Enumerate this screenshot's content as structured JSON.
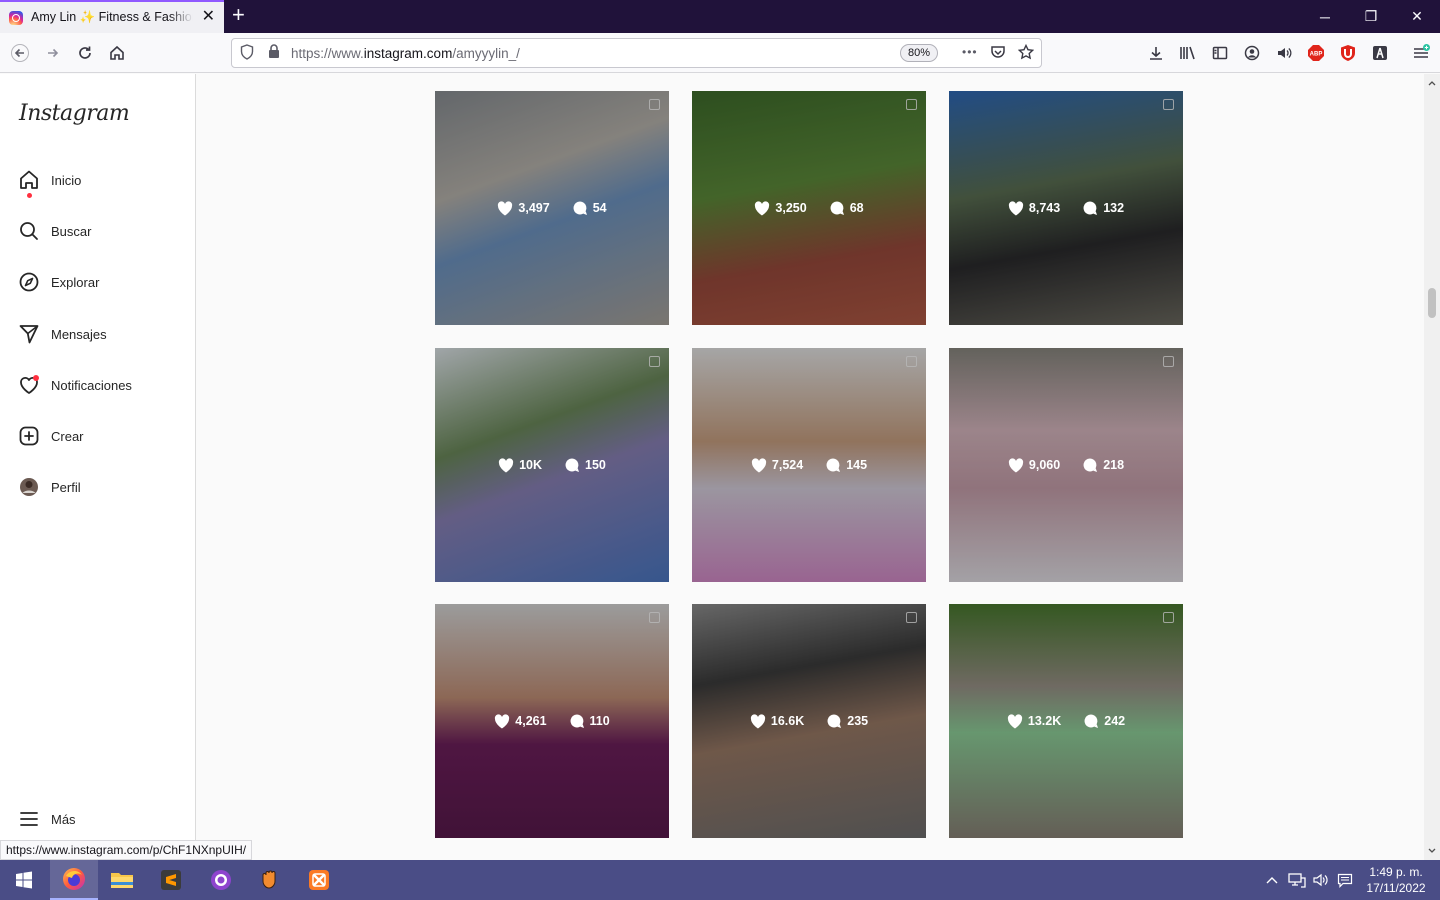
{
  "browser": {
    "tab_title": "Amy Lin ✨ Fitness & Fashion (@",
    "url_prefix": "https://www.",
    "url_domain": "instagram.com",
    "url_path": "/amyyylin_/",
    "zoom": "80%",
    "status_url": "https://www.instagram.com/p/ChF1NXnpUIH/",
    "more_glyph": "•••"
  },
  "sidebar": {
    "logo": "Instagram",
    "items": [
      {
        "label": "Inicio",
        "icon": "home-icon"
      },
      {
        "label": "Buscar",
        "icon": "search-icon"
      },
      {
        "label": "Explorar",
        "icon": "explore-icon"
      },
      {
        "label": "Mensajes",
        "icon": "messages-icon"
      },
      {
        "label": "Notificaciones",
        "icon": "heart-icon"
      },
      {
        "label": "Crear",
        "icon": "create-icon"
      },
      {
        "label": "Perfil",
        "icon": "avatar"
      }
    ],
    "more_label": "Más"
  },
  "posts": [
    {
      "likes": "3,497",
      "comments": "54"
    },
    {
      "likes": "3,250",
      "comments": "68"
    },
    {
      "likes": "8,743",
      "comments": "132"
    },
    {
      "likes": "10K",
      "comments": "150"
    },
    {
      "likes": "7,524",
      "comments": "145"
    },
    {
      "likes": "9,060",
      "comments": "218"
    },
    {
      "likes": "4,261",
      "comments": "110"
    },
    {
      "likes": "16.6K",
      "comments": "235"
    },
    {
      "likes": "13.2K",
      "comments": "242"
    }
  ],
  "post_bg": [
    "linear-gradient(160deg,#8a8f94 0%,#b8b4ad 35%,#6f95c2 55%,#a9a39b 100%)",
    "linear-gradient(170deg,#3f6d2c 0%,#5d8b3a 40%,#9a4a3c 70%,#b15a45 100%)",
    "linear-gradient(170deg,#2f6ab8 0%,#5b6f53 40%,#2b2b2d 65%,#6c6a60 100%)",
    "linear-gradient(160deg,#dfe6ea 0%,#6c8a5b 35%,#8a82b8 55%,#4c78c4 100%)",
    "linear-gradient(180deg,#e6e6e6 0%,#c9a081 40%,#d7d0de 60%,#d58bc9 100%)",
    "linear-gradient(180deg,#8a8880 0%,#d8b8c0 35%,#c8a0ac 60%,#e3e0e6 100%)",
    "linear-gradient(180deg,#d8d8d8 0%,#c39077 40%,#6e1f5c 60%,#5a1a4d 100%)",
    "linear-gradient(170deg,#8f8f8f 0%,#3c3c3c 30%,#9a7a66 55%,#6f6f6f 100%)",
    "linear-gradient(180deg,#4a7a2f 0%,#9a9388 35%,#8fd19a 55%,#8b8378 100%)"
  ],
  "clock": {
    "time": "1:49 p. m.",
    "date": "17/11/2022"
  },
  "colors": {
    "accent": "#9059ff",
    "taskbar": "#4a4d86",
    "notification_dot": "#ff3040"
  }
}
